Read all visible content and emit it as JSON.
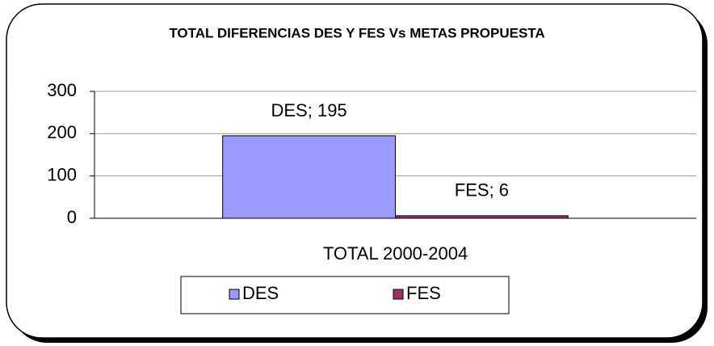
{
  "chart_data": {
    "type": "bar",
    "title": "TOTAL DIFERENCIAS DES Y FES Vs METAS PROPUESTA",
    "categories": [
      "TOTAL 2000-2004"
    ],
    "series": [
      {
        "name": "DES",
        "color": "#9999ff",
        "values": [
          195
        ],
        "value_labels": [
          "DES; 195"
        ]
      },
      {
        "name": "FES",
        "color": "#993366",
        "values": [
          6
        ],
        "value_labels": [
          "FES; 6"
        ]
      }
    ],
    "ylim": [
      0,
      300
    ],
    "yticks": [
      0,
      100,
      200,
      300
    ],
    "grid": true,
    "legend": "bottom"
  }
}
